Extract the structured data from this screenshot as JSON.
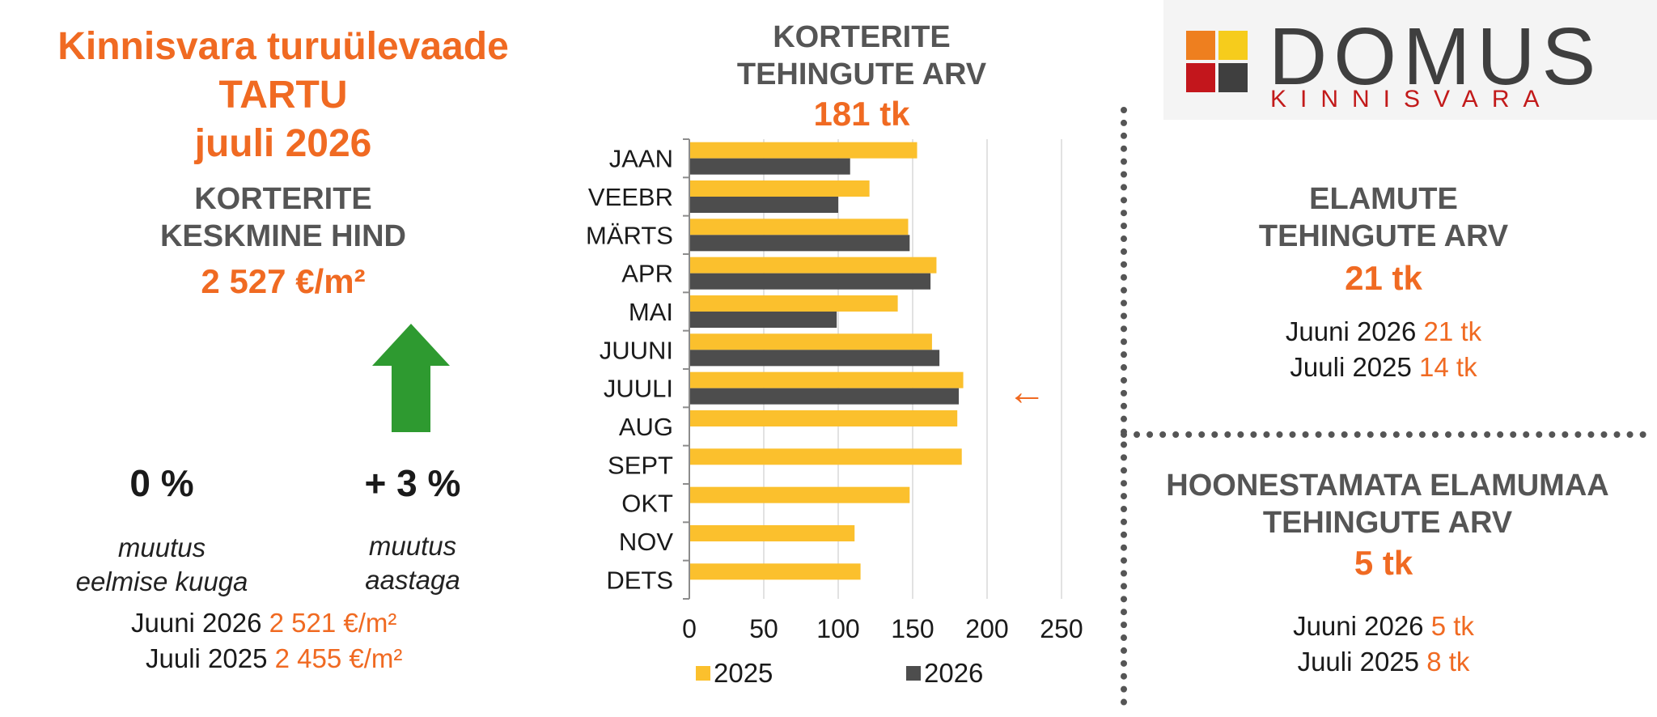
{
  "left": {
    "title_line1": "Kinnisvara turuülevaade",
    "title_line2": "TARTU",
    "title_line3": "juuli 2026",
    "subtitle_line1": "KORTERITE",
    "subtitle_line2": "KESKMINE HIND",
    "price": "2 527 €/m²",
    "arrow_color": "#2e9a30",
    "month_change": "0 %",
    "month_label_line1": "muutus",
    "month_label_line2": "eelmise kuuga",
    "year_change": "+ 3 %",
    "year_label_line1": "muutus",
    "year_label_line2": "aastaga",
    "cmp1_label": "Juuni 2026",
    "cmp1_value": "2 521 €/m²",
    "cmp2_label": "Juuli 2025",
    "cmp2_value": "2 455 €/m²"
  },
  "middle": {
    "title_line1": "KORTERITE",
    "title_line2": "TEHINGUTE ARV",
    "total": "181 tk",
    "arrow_glyph": "←"
  },
  "chart_data": {
    "type": "bar",
    "orientation": "horizontal",
    "categories": [
      "JAAN",
      "VEEBR",
      "MÄRTS",
      "APR",
      "MAI",
      "JUUNI",
      "JUULI",
      "AUG",
      "SEPT",
      "OKT",
      "NOV",
      "DETS"
    ],
    "series": [
      {
        "name": "2025",
        "color": "#fbc02d",
        "values": [
          153,
          121,
          147,
          166,
          140,
          163,
          184,
          180,
          183,
          148,
          111,
          115
        ]
      },
      {
        "name": "2026",
        "color": "#4d4d4d",
        "values": [
          108,
          100,
          148,
          162,
          99,
          168,
          181,
          null,
          null,
          null,
          null,
          null
        ]
      }
    ],
    "xlim": [
      0,
      250
    ],
    "xticks": [
      0,
      50,
      100,
      150,
      200,
      250
    ],
    "grid": true,
    "legend_position": "bottom"
  },
  "right": {
    "elamute_line1": "ELAMUTE",
    "elamute_line2": "TEHINGUTE ARV",
    "elamute_total": "21 tk",
    "elamute_cmp1_label": "Juuni 2026",
    "elamute_cmp1_value": "21 tk",
    "elamute_cmp2_label": "Juuli 2025",
    "elamute_cmp2_value": "14 tk",
    "maa_line1": "HOONESTAMATA ELAMUMAA",
    "maa_line2": "TEHINGUTE ARV",
    "maa_total": "5 tk",
    "maa_cmp1_label": "Juuni 2026",
    "maa_cmp1_value": "5 tk",
    "maa_cmp2_label": "Juuli 2025",
    "maa_cmp2_value": "8 tk"
  },
  "logo": {
    "name": "DOMUS",
    "sub": "KINNISVARA",
    "colors": [
      "#ee7f1f",
      "#f6cc1c",
      "#c3161c",
      "#3f3f3f"
    ]
  }
}
